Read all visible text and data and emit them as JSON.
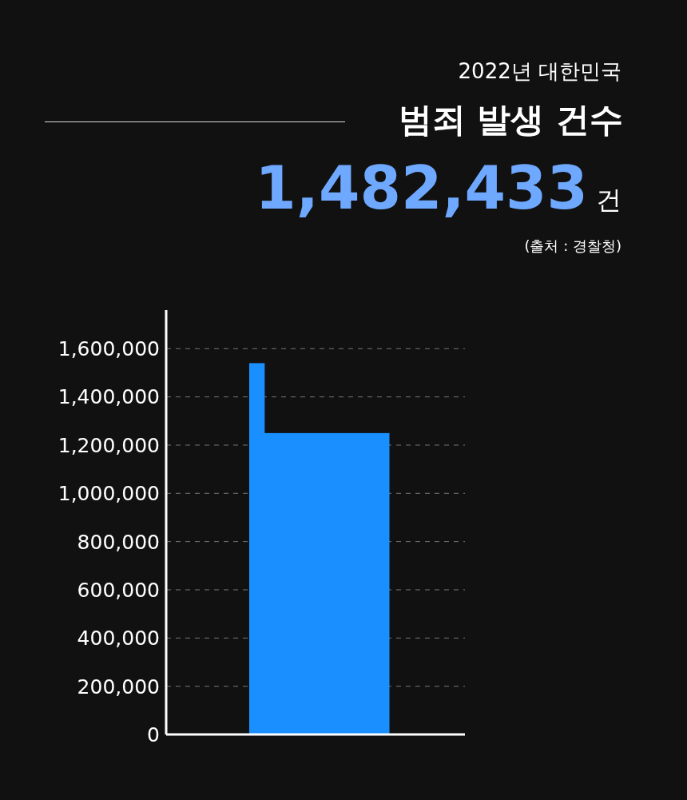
{
  "chart_data": {
    "type": "bar",
    "subtitle": "2022년 대한민국",
    "title": "범죄 발생 건수",
    "annotations": [
      "1,482,433",
      "건",
      "(출처 : 경찰청)"
    ],
    "categories": [
      null,
      null
    ],
    "values": [
      1540000,
      1250000
    ],
    "color": "#1a8fff",
    "ylim": [
      0,
      1760000
    ],
    "yticks": [
      0,
      {
        "value": 200000,
        "label": "200,000"
      },
      {
        "value": 400000,
        "label": "400,000"
      },
      {
        "value": 600000,
        "label": "600,000"
      },
      {
        "value": 800000,
        "label": "800,000"
      },
      {
        "value": 1000000,
        "label": "1,000,000"
      },
      {
        "value": 1200000,
        "label": "1,200,000"
      },
      {
        "value": 1400000,
        "label": "1,400,000"
      },
      {
        "value": 1600000,
        "label": "1,600,000"
      }
    ],
    "grid": "y",
    "legend": false
  }
}
